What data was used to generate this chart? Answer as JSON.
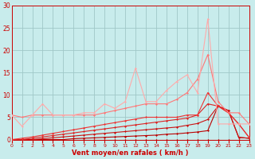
{
  "bg_color": "#c8ecec",
  "grid_color": "#a0c8c8",
  "xlabel": "Vent moyen/en rafales ( km/h )",
  "xlim": [
    0,
    23
  ],
  "ylim": [
    0,
    30
  ],
  "yticks": [
    0,
    5,
    10,
    15,
    20,
    25,
    30
  ],
  "xticks": [
    0,
    1,
    2,
    3,
    4,
    5,
    6,
    7,
    8,
    9,
    10,
    11,
    12,
    13,
    14,
    15,
    16,
    17,
    18,
    19,
    20,
    21,
    22,
    23
  ],
  "lines": [
    {
      "x": [
        0,
        1,
        2,
        3,
        4,
        5,
        6,
        7,
        8,
        9,
        10,
        11,
        12,
        13,
        14,
        15,
        16,
        17,
        18,
        19,
        20,
        21,
        22,
        23
      ],
      "y": [
        0,
        0,
        0,
        0,
        0,
        0,
        0,
        0,
        0,
        0,
        0,
        0,
        0,
        0,
        0,
        0,
        0,
        0,
        0,
        0,
        0,
        0,
        0,
        0
      ],
      "color": "#cc0000",
      "lw": 0.8,
      "marker": "D",
      "ms": 1.5,
      "zorder": 3
    },
    {
      "x": [
        0,
        1,
        2,
        3,
        4,
        5,
        6,
        7,
        8,
        9,
        10,
        11,
        12,
        13,
        14,
        15,
        16,
        17,
        18,
        19,
        20,
        21,
        22,
        23
      ],
      "y": [
        0,
        0,
        0,
        0,
        0,
        0,
        0.2,
        0.3,
        0.4,
        0.5,
        0.6,
        0.7,
        0.8,
        0.9,
        1.0,
        1.2,
        1.3,
        1.5,
        1.7,
        2.0,
        7.5,
        6.5,
        0.5,
        0.3
      ],
      "color": "#bb0000",
      "lw": 0.8,
      "marker": "D",
      "ms": 1.5,
      "zorder": 3
    },
    {
      "x": [
        0,
        1,
        2,
        3,
        4,
        5,
        6,
        7,
        8,
        9,
        10,
        11,
        12,
        13,
        14,
        15,
        16,
        17,
        18,
        19,
        20,
        21,
        22,
        23
      ],
      "y": [
        0,
        0,
        0,
        0.2,
        0.4,
        0.6,
        0.8,
        1.0,
        1.2,
        1.4,
        1.6,
        1.8,
        2.0,
        2.2,
        2.4,
        2.6,
        2.8,
        3.2,
        3.6,
        4.5,
        7.5,
        6.5,
        0.5,
        0.3
      ],
      "color": "#cc1111",
      "lw": 0.8,
      "marker": "D",
      "ms": 1.5,
      "zorder": 3
    },
    {
      "x": [
        0,
        1,
        2,
        3,
        4,
        5,
        6,
        7,
        8,
        9,
        10,
        11,
        12,
        13,
        14,
        15,
        16,
        17,
        18,
        19,
        20,
        21,
        22,
        23
      ],
      "y": [
        0,
        0,
        0.3,
        0.6,
        0.9,
        1.2,
        1.5,
        1.8,
        2.1,
        2.4,
        2.7,
        3.0,
        3.3,
        3.6,
        3.9,
        4.2,
        4.5,
        4.8,
        5.5,
        8.0,
        7.5,
        6.0,
        3.5,
        0.5
      ],
      "color": "#dd2222",
      "lw": 0.8,
      "marker": "D",
      "ms": 1.5,
      "zorder": 3
    },
    {
      "x": [
        0,
        1,
        2,
        3,
        4,
        5,
        6,
        7,
        8,
        9,
        10,
        11,
        12,
        13,
        14,
        15,
        16,
        17,
        18,
        19,
        20,
        21,
        22,
        23
      ],
      "y": [
        0,
        0.3,
        0.6,
        1.0,
        1.4,
        1.8,
        2.2,
        2.6,
        3.0,
        3.4,
        3.8,
        4.2,
        4.6,
        5.0,
        5.0,
        5.0,
        5.0,
        5.5,
        5.5,
        10.5,
        7.5,
        6.0,
        3.5,
        0.5
      ],
      "color": "#ee3333",
      "lw": 0.8,
      "marker": "D",
      "ms": 1.5,
      "zorder": 3
    },
    {
      "x": [
        0,
        1,
        2,
        3,
        4,
        5,
        6,
        7,
        8,
        9,
        10,
        11,
        12,
        13,
        14,
        15,
        16,
        17,
        18,
        19,
        20,
        21,
        22,
        23
      ],
      "y": [
        5.5,
        5.0,
        5.5,
        5.5,
        5.5,
        5.5,
        5.5,
        5.5,
        5.5,
        6.0,
        6.5,
        7.0,
        7.5,
        8.0,
        8.0,
        8.0,
        9.0,
        10.5,
        13.5,
        19.0,
        8.5,
        6.0,
        6.0,
        3.5
      ],
      "color": "#ff7777",
      "lw": 0.8,
      "marker": "D",
      "ms": 1.5,
      "zorder": 3
    },
    {
      "x": [
        0,
        1,
        2,
        3,
        4,
        5,
        6,
        7,
        8,
        9,
        10,
        11,
        12,
        13,
        14,
        15,
        16,
        17,
        18,
        19,
        20,
        21,
        22,
        23
      ],
      "y": [
        5.5,
        3.0,
        5.5,
        8.0,
        5.5,
        5.5,
        5.5,
        6.0,
        6.0,
        8.0,
        7.0,
        8.5,
        16.0,
        8.5,
        8.5,
        11.0,
        13.0,
        14.5,
        10.5,
        27.0,
        3.5,
        3.5,
        3.5,
        3.5
      ],
      "color": "#ffaaaa",
      "lw": 0.8,
      "marker": "D",
      "ms": 1.5,
      "zorder": 3
    }
  ]
}
